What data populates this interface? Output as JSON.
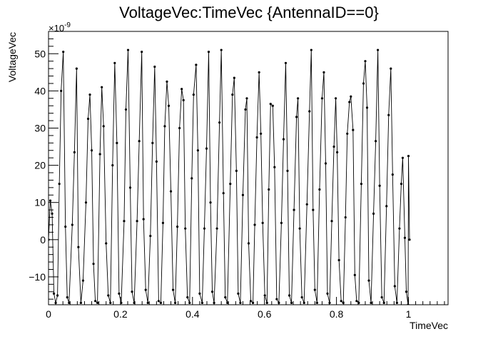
{
  "chart_data": {
    "type": "line",
    "title": "VoltageVec:TimeVec {AntennaID==0}",
    "xlabel": "TimeVec",
    "ylabel": "VoltageVec",
    "y_exponent_base": "×10",
    "y_exponent_power": "-9",
    "xlim": [
      0,
      1.11
    ],
    "ylim": [
      -17.5,
      56
    ],
    "xticks": [
      0,
      0.2,
      0.4,
      0.6,
      0.8,
      1
    ],
    "xtick_labels": [
      "0",
      "0.2",
      "0.4",
      "0.6",
      "0.8",
      "1"
    ],
    "yticks": [
      -10,
      0,
      10,
      20,
      30,
      40,
      50
    ],
    "ytick_labels": [
      "−10",
      "0",
      "10",
      "20",
      "30",
      "40",
      "50"
    ],
    "grid": false,
    "legend": "none",
    "series": [
      {
        "points": [
          [
            0.0,
            0.0
          ],
          [
            0.005,
            10.5
          ],
          [
            0.01,
            7.0
          ],
          [
            0.015,
            -14.5
          ],
          [
            0.02,
            -17.0
          ],
          [
            0.025,
            -15.0
          ],
          [
            0.03,
            15.0
          ],
          [
            0.035,
            40.0
          ],
          [
            0.041,
            50.5
          ],
          [
            0.047,
            3.5
          ],
          [
            0.052,
            -15.5
          ],
          [
            0.057,
            -17.0
          ],
          [
            0.066,
            4.0
          ],
          [
            0.072,
            23.5
          ],
          [
            0.078,
            46.0
          ],
          [
            0.083,
            -2.0
          ],
          [
            0.09,
            -17.0
          ],
          [
            0.096,
            -11.0
          ],
          [
            0.104,
            10.0
          ],
          [
            0.11,
            32.5
          ],
          [
            0.115,
            39.0
          ],
          [
            0.12,
            24.0
          ],
          [
            0.125,
            -6.5
          ],
          [
            0.13,
            -16.5
          ],
          [
            0.136,
            -17.0
          ],
          [
            0.143,
            23.0
          ],
          [
            0.148,
            41.0
          ],
          [
            0.153,
            30.5
          ],
          [
            0.16,
            -1.0
          ],
          [
            0.166,
            -15.0
          ],
          [
            0.172,
            -17.0
          ],
          [
            0.178,
            20.0
          ],
          [
            0.184,
            47.5
          ],
          [
            0.19,
            26.0
          ],
          [
            0.196,
            -14.5
          ],
          [
            0.202,
            -17.0
          ],
          [
            0.21,
            5.0
          ],
          [
            0.215,
            35.0
          ],
          [
            0.221,
            51.0
          ],
          [
            0.227,
            14.0
          ],
          [
            0.232,
            -14.0
          ],
          [
            0.238,
            -17.0
          ],
          [
            0.246,
            5.0
          ],
          [
            0.252,
            26.5
          ],
          [
            0.259,
            50.5
          ],
          [
            0.264,
            5.5
          ],
          [
            0.27,
            -13.5
          ],
          [
            0.276,
            -17.0
          ],
          [
            0.283,
            1.0
          ],
          [
            0.289,
            26.0
          ],
          [
            0.295,
            46.5
          ],
          [
            0.3,
            21.0
          ],
          [
            0.306,
            -16.5
          ],
          [
            0.312,
            -17.0
          ],
          [
            0.318,
            4.5
          ],
          [
            0.323,
            30.5
          ],
          [
            0.329,
            42.5
          ],
          [
            0.334,
            36.0
          ],
          [
            0.34,
            13.0
          ],
          [
            0.346,
            -13.5
          ],
          [
            0.352,
            -17.0
          ],
          [
            0.358,
            3.5
          ],
          [
            0.364,
            30.0
          ],
          [
            0.37,
            40.5
          ],
          [
            0.375,
            37.5
          ],
          [
            0.38,
            3.0
          ],
          [
            0.386,
            -15.5
          ],
          [
            0.392,
            -17.0
          ],
          [
            0.398,
            16.5
          ],
          [
            0.403,
            39.0
          ],
          [
            0.41,
            47.0
          ],
          [
            0.415,
            24.0
          ],
          [
            0.42,
            -14.5
          ],
          [
            0.427,
            -17.0
          ],
          [
            0.433,
            3.0
          ],
          [
            0.439,
            24.5
          ],
          [
            0.445,
            50.5
          ],
          [
            0.45,
            10.0
          ],
          [
            0.455,
            -14.0
          ],
          [
            0.46,
            -17.0
          ],
          [
            0.468,
            3.0
          ],
          [
            0.475,
            31.5
          ],
          [
            0.48,
            51.0
          ],
          [
            0.486,
            12.5
          ],
          [
            0.491,
            -15.5
          ],
          [
            0.497,
            -17.0
          ],
          [
            0.505,
            15.0
          ],
          [
            0.511,
            39.0
          ],
          [
            0.516,
            43.5
          ],
          [
            0.522,
            18.5
          ],
          [
            0.527,
            -14.5
          ],
          [
            0.533,
            -17.0
          ],
          [
            0.54,
            12.0
          ],
          [
            0.547,
            35.0
          ],
          [
            0.551,
            38.0
          ],
          [
            0.556,
            -1.0
          ],
          [
            0.562,
            -16.5
          ],
          [
            0.568,
            -17.0
          ],
          [
            0.573,
            4.0
          ],
          [
            0.579,
            27.5
          ],
          [
            0.585,
            45.0
          ],
          [
            0.59,
            28.5
          ],
          [
            0.595,
            4.5
          ],
          [
            0.601,
            -15.0
          ],
          [
            0.607,
            -17.0
          ],
          [
            0.612,
            13.5
          ],
          [
            0.617,
            36.5
          ],
          [
            0.623,
            36.0
          ],
          [
            0.628,
            19.5
          ],
          [
            0.634,
            -16.0
          ],
          [
            0.64,
            -17.0
          ],
          [
            0.647,
            4.5
          ],
          [
            0.653,
            27.0
          ],
          [
            0.659,
            47.5
          ],
          [
            0.664,
            18.5
          ],
          [
            0.669,
            -15.0
          ],
          [
            0.675,
            -17.0
          ],
          [
            0.682,
            8.0
          ],
          [
            0.689,
            33.0
          ],
          [
            0.693,
            38.0
          ],
          [
            0.698,
            3.0
          ],
          [
            0.704,
            -15.5
          ],
          [
            0.71,
            -17.0
          ],
          [
            0.718,
            9.5
          ],
          [
            0.725,
            34.5
          ],
          [
            0.73,
            51.0
          ],
          [
            0.735,
            8.0
          ],
          [
            0.74,
            -13.5
          ],
          [
            0.746,
            -17.0
          ],
          [
            0.753,
            13.5
          ],
          [
            0.76,
            38.0
          ],
          [
            0.765,
            45.0
          ],
          [
            0.77,
            20.5
          ],
          [
            0.775,
            -14.5
          ],
          [
            0.781,
            -17.0
          ],
          [
            0.787,
            5.0
          ],
          [
            0.793,
            25.0
          ],
          [
            0.798,
            38.0
          ],
          [
            0.802,
            23.5
          ],
          [
            0.807,
            -5.5
          ],
          [
            0.813,
            -16.5
          ],
          [
            0.819,
            -17.0
          ],
          [
            0.825,
            6.0
          ],
          [
            0.83,
            28.5
          ],
          [
            0.836,
            37.0
          ],
          [
            0.84,
            38.5
          ],
          [
            0.846,
            29.5
          ],
          [
            0.851,
            -9.5
          ],
          [
            0.856,
            -16.5
          ],
          [
            0.862,
            -17.0
          ],
          [
            0.869,
            15.0
          ],
          [
            0.875,
            42.0
          ],
          [
            0.88,
            48.0
          ],
          [
            0.885,
            35.5
          ],
          [
            0.89,
            -11.0
          ],
          [
            0.896,
            -17.0
          ],
          [
            0.903,
            7.0
          ],
          [
            0.909,
            26.5
          ],
          [
            0.915,
            51.0
          ],
          [
            0.92,
            14.5
          ],
          [
            0.926,
            -15.5
          ],
          [
            0.932,
            -17.0
          ],
          [
            0.939,
            9.0
          ],
          [
            0.945,
            33.5
          ],
          [
            0.951,
            46.0
          ],
          [
            0.956,
            17.5
          ],
          [
            0.962,
            -12.5
          ],
          [
            0.968,
            -17.0
          ],
          [
            0.975,
            3.0
          ],
          [
            0.98,
            15.0
          ],
          [
            0.984,
            22.0
          ],
          [
            0.99,
            0.5
          ],
          [
            0.994,
            -14.0
          ],
          [
            0.999,
            -17.5
          ],
          [
            1.0,
            22.5
          ],
          [
            1.003,
            0.0
          ]
        ]
      }
    ]
  }
}
